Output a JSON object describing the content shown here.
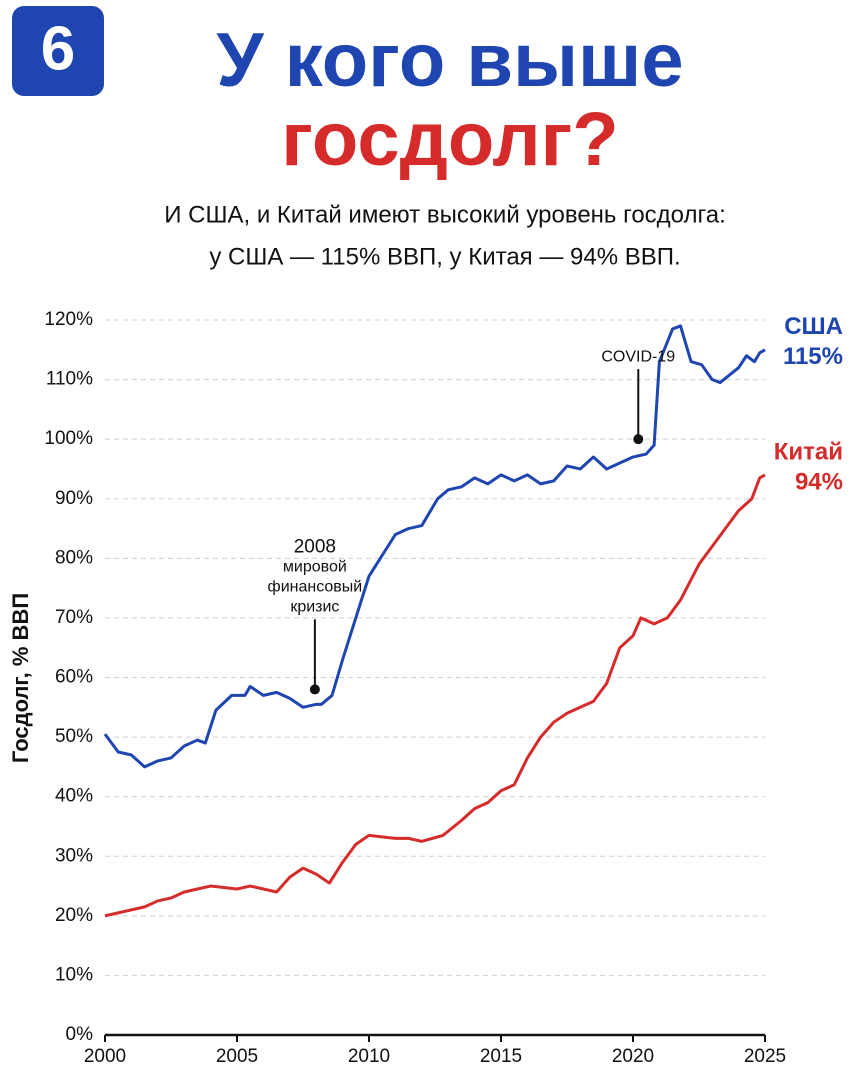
{
  "chart_data": {
    "type": "line",
    "badge": "6",
    "title_lines": [
      "У кого выше",
      "госдолг?"
    ],
    "subtitle_lines": [
      "И США, и Китай имеют высокий уровень госдолга:",
      "у США — 115% ВВП, у Китая — 94% ВВП."
    ],
    "y_label": "Госдолг, % ВВП",
    "xlim": [
      2000,
      2025
    ],
    "xticks": [
      2000,
      2005,
      2010,
      2015,
      2020,
      2025
    ],
    "ylim": [
      0,
      120
    ],
    "yticks": [
      {
        "value": 0,
        "label": "0%"
      },
      {
        "value": 10,
        "label": "10%"
      },
      {
        "value": 20,
        "label": "20%"
      },
      {
        "value": 30,
        "label": "30%"
      },
      {
        "value": 40,
        "label": "40%"
      },
      {
        "value": 50,
        "label": "50%"
      },
      {
        "value": 60,
        "label": "60%"
      },
      {
        "value": 70,
        "label": "70%"
      },
      {
        "value": 80,
        "label": "80%"
      },
      {
        "value": 90,
        "label": "90%"
      },
      {
        "value": 100,
        "label": "100%"
      },
      {
        "value": 110,
        "label": "110%"
      },
      {
        "value": 120,
        "label": "120%"
      }
    ],
    "grid": true,
    "series": [
      {
        "name": "США",
        "end_label": "115%",
        "color": "#1f45b0",
        "x": [
          2000,
          2000.5,
          2001,
          2001.5,
          2002,
          2002.5,
          2003,
          2003.5,
          2003.8,
          2004.2,
          2004.8,
          2005.3,
          2005.5,
          2006,
          2006.5,
          2007,
          2007.5,
          2008,
          2008.2,
          2008.6,
          2009,
          2009.5,
          2010,
          2010.5,
          2011,
          2011.5,
          2012,
          2012.6,
          2013,
          2013.5,
          2014,
          2014.5,
          2015,
          2015.5,
          2016,
          2016.5,
          2017,
          2017.5,
          2018,
          2018.5,
          2019,
          2019.5,
          2020,
          2020.5,
          2020.8,
          2021,
          2021.5,
          2021.8,
          2022.2,
          2022.6,
          2023,
          2023.3,
          2024,
          2024.3,
          2024.6,
          2024.8,
          2025
        ],
        "values": [
          50.5,
          47.5,
          47,
          45,
          46,
          46.5,
          48.5,
          49.5,
          49,
          54.5,
          57,
          57,
          58.5,
          57,
          57.5,
          56.5,
          55,
          55.5,
          55.5,
          57,
          63,
          70,
          77,
          80.5,
          84,
          85,
          85.5,
          90,
          91.5,
          92,
          93.5,
          92.5,
          94,
          93,
          94,
          92.5,
          93,
          95.5,
          95,
          97,
          95,
          96,
          97,
          97.5,
          99,
          113,
          118.5,
          119,
          113,
          112.5,
          110,
          109.5,
          112,
          114,
          113,
          114.5,
          115
        ]
      },
      {
        "name": "Китай",
        "end_label": "94%",
        "color": "#d62b2b",
        "x": [
          2000,
          2000.5,
          2001,
          2001.5,
          2002,
          2002.5,
          2003,
          2003.5,
          2004,
          2005,
          2005.5,
          2006,
          2006.5,
          2007,
          2007.5,
          2008,
          2008.5,
          2009,
          2009.5,
          2010,
          2011,
          2011.5,
          2012,
          2012.8,
          2013.5,
          2014,
          2014.5,
          2015,
          2015.5,
          2016,
          2016.5,
          2017,
          2017.5,
          2018,
          2018.5,
          2019,
          2019.5,
          2020,
          2020.3,
          2020.8,
          2021.3,
          2021.8,
          2022.5,
          2023,
          2023.5,
          2024,
          2024.5,
          2024.8,
          2025
        ],
        "values": [
          20,
          20.5,
          21,
          21.5,
          22.5,
          23,
          24,
          24.5,
          25,
          24.5,
          25,
          24.5,
          24,
          26.5,
          28,
          27,
          25.5,
          29,
          32,
          33.5,
          33,
          33,
          32.5,
          33.5,
          36,
          38,
          39,
          41,
          42,
          46.5,
          50,
          52.5,
          54,
          55,
          56,
          59,
          65,
          67,
          70,
          69,
          70,
          73,
          79,
          82,
          85,
          88,
          90,
          93.5,
          94
        ]
      }
    ],
    "annotations": [
      {
        "lines": [
          "2008",
          "мировой",
          "финансовый",
          "кризис"
        ],
        "x": 2007.95,
        "y": 58
      },
      {
        "lines": [
          "COVID-19"
        ],
        "x": 2020.2,
        "y": 100
      }
    ]
  }
}
